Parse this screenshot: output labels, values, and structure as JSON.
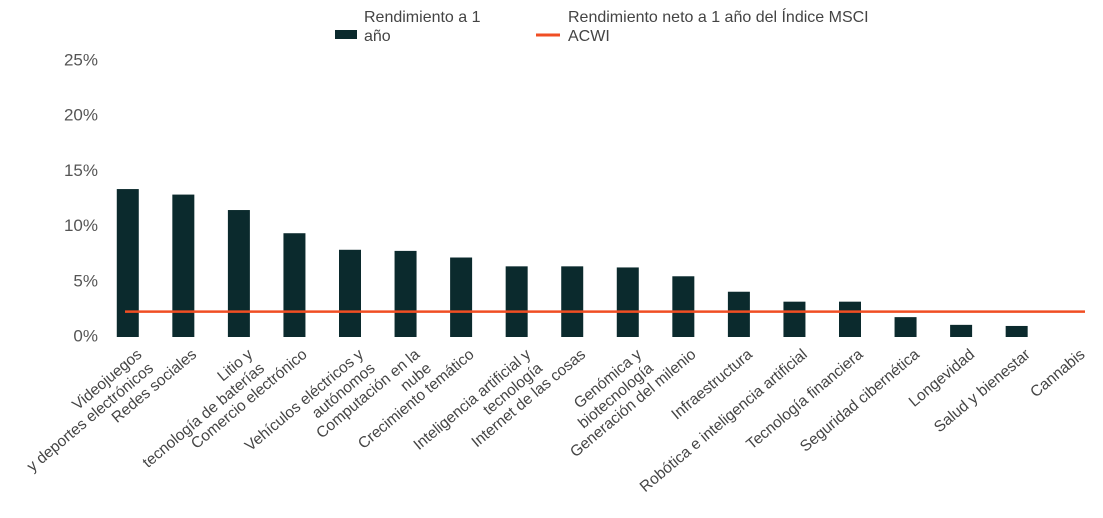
{
  "chart_data": {
    "type": "bar",
    "categories": [
      "Videojuegos\ny deportes electrónicos",
      "Redes sociales",
      "Litio y\ntecnología de baterías",
      "Comercio electrónico",
      "Vehículos eléctricos y\nautónomos",
      "Computación en la\nnube",
      "Crecimiento temático",
      "Inteligencia artificial y\ntecnología",
      "Internet de las cosas",
      "Genómica y\nbiotecnología",
      "Generación del milenio",
      "Infraestructura",
      "Robótica e inteligencia artificial",
      "Tecnología financiera",
      "Seguridad cibernética",
      "Longevidad",
      "Salud y bienestar",
      "Cannabis"
    ],
    "series": [
      {
        "name": "Rendimiento a 1\naño",
        "color": "#0b2a2d",
        "values": [
          13.4,
          12.9,
          11.5,
          9.4,
          7.9,
          7.8,
          7.2,
          6.4,
          6.4,
          6.3,
          5.5,
          4.1,
          3.2,
          3.2,
          1.8,
          1.1,
          1.0,
          0
        ]
      }
    ],
    "reference_line": {
      "name": "Rendimiento neto a 1 año del Índice MSCI\nACWI",
      "color": "#f04e23",
      "value": 2.3
    },
    "ylim": [
      0,
      25
    ],
    "yticks": [
      {
        "value": 0,
        "label": "0%"
      },
      {
        "value": 5,
        "label": "5%"
      },
      {
        "value": 10,
        "label": "10%"
      },
      {
        "value": 15,
        "label": "15%"
      },
      {
        "value": 20,
        "label": "20%"
      },
      {
        "value": 25,
        "label": "25%"
      }
    ],
    "grid": false
  }
}
